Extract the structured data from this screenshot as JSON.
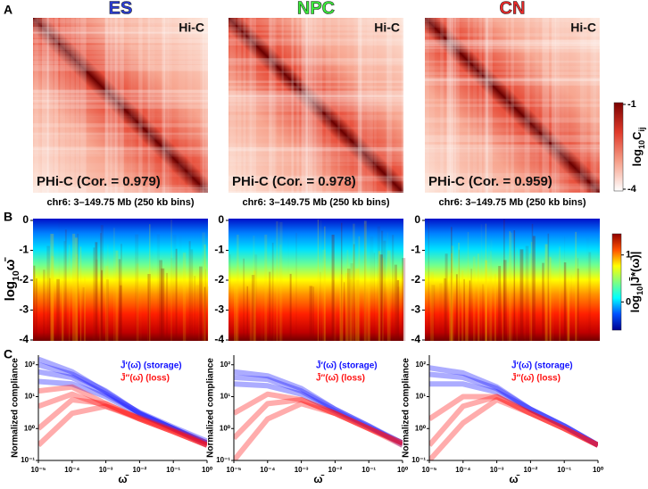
{
  "chart_data": [
    {
      "type": "heatmap",
      "panel": "A",
      "title": "ES",
      "title_color": "#2b3fe0",
      "corner_label": "Hi-C",
      "overlay_label": "PHi-C (Cor. = 0.979)",
      "xlabel": "chr6: 3–149.75 Mb (250 kb bins)"
    },
    {
      "type": "heatmap",
      "title": "NPC",
      "title_color": "#3cf03c",
      "corner_label": "Hi-C",
      "overlay_label": "PHi-C (Cor. = 0.978)",
      "xlabel": "chr6: 3–149.75 Mb (250 kb bins)"
    },
    {
      "type": "heatmap",
      "title": "CN",
      "title_color": "#f02a2a",
      "corner_label": "Hi-C",
      "overlay_label": "PHi-C (Cor. = 0.959)",
      "xlabel": "chr6: 3–149.75 Mb (250 kb bins)"
    },
    {
      "type": "colorbar",
      "lim": [
        -4,
        -1
      ],
      "ticks": [
        -1,
        -4
      ],
      "label": [
        "log",
        "10",
        "C",
        "ij"
      ],
      "colors": [
        "#ffffff",
        "#f6a08a",
        "#e03a2a",
        "#7a0000"
      ]
    },
    {
      "type": "spectrogram",
      "panel": "B",
      "ylabel": [
        "log",
        "10",
        "ω̄"
      ],
      "ylim": [
        -4,
        0
      ],
      "yticks": [
        0,
        -1,
        -2,
        -3,
        -4
      ]
    },
    {
      "type": "spectrogram",
      "ylim": [
        -4,
        0
      ],
      "yticks": [
        0,
        -1,
        -2,
        -3,
        -4
      ]
    },
    {
      "type": "spectrogram",
      "ylim": [
        -4,
        0
      ],
      "yticks": [
        0,
        -1,
        -2,
        -3,
        -4
      ]
    },
    {
      "type": "colorbar",
      "lim": [
        -0.6,
        1.45
      ],
      "ticks": [
        1,
        0
      ],
      "label": [
        "log",
        "10",
        "|J̄*(ω̄)|"
      ],
      "colors": [
        "#00008f",
        "#0050ff",
        "#00ffff",
        "#80ff80",
        "#ffff00",
        "#ff5000",
        "#8f0000"
      ]
    },
    {
      "type": "line",
      "panel": "C",
      "ylabel": "Normalized compliance",
      "xlabel": "ω̄",
      "log": true,
      "x": [
        1e-05,
        0.0001,
        0.001,
        0.01,
        0.1,
        1
      ],
      "xlim": [
        1e-05,
        1
      ],
      "ylim": [
        0.1,
        200
      ],
      "xticks": [
        {
          "value": 1e-05,
          "label": "10⁻⁵"
        },
        {
          "value": 0.0001,
          "label": "10⁻⁴"
        },
        {
          "value": 0.001,
          "label": "10⁻³"
        },
        {
          "value": 0.01,
          "label": "10⁻²"
        },
        {
          "value": 0.1,
          "label": "10⁻¹"
        },
        {
          "value": 1,
          "label": "10⁰"
        }
      ],
      "yticks": [
        {
          "value": 0.1,
          "label": "10⁻¹"
        },
        {
          "value": 1,
          "label": "10⁰"
        },
        {
          "value": 10,
          "label": "10¹"
        },
        {
          "value": 100,
          "label": "10²"
        }
      ],
      "series": [
        {
          "name": "J̄′(ω̄) (storage)",
          "color": "#1010ff",
          "curves": [
            [
              100,
              50,
              15,
              3,
              1,
              0.35
            ],
            [
              60,
              40,
              12,
              3.2,
              1.1,
              0.4
            ],
            [
              30,
              25,
              10,
              2.8,
              1,
              0.35
            ],
            [
              150,
              60,
              14,
              3,
              1,
              0.3
            ]
          ]
        },
        {
          "name": "J̄″(ω̄) (loss)",
          "color": "#ff1010",
          "curves": [
            [
              1,
              8,
              6,
              2,
              0.8,
              0.3
            ],
            [
              5,
              12,
              5,
              2.2,
              0.9,
              0.35
            ],
            [
              0.3,
              3,
              5,
              2,
              0.8,
              0.3
            ],
            [
              15,
              20,
              6,
              2,
              0.8,
              0.3
            ]
          ]
        }
      ]
    },
    {
      "type": "line",
      "ylabel": "Normalized compliance",
      "xlabel": "ω̄",
      "log": true,
      "x": [
        1e-05,
        0.0001,
        0.001,
        0.01,
        0.1,
        1
      ],
      "xlim": [
        1e-05,
        1
      ],
      "ylim": [
        0.1,
        200
      ],
      "xticks": [
        {
          "value": 1e-05,
          "label": "10⁻⁵"
        },
        {
          "value": 0.0001,
          "label": "10⁻⁴"
        },
        {
          "value": 0.001,
          "label": "10⁻³"
        },
        {
          "value": 0.01,
          "label": "10⁻²"
        },
        {
          "value": 0.1,
          "label": "10⁻¹"
        },
        {
          "value": 1,
          "label": "10⁰"
        }
      ],
      "yticks": [
        {
          "value": 0.1,
          "label": "10⁻¹"
        },
        {
          "value": 1,
          "label": "10⁰"
        },
        {
          "value": 10,
          "label": "10¹"
        },
        {
          "value": 100,
          "label": "10²"
        }
      ],
      "series": [
        {
          "name": "J̄′(ω̄) (storage)",
          "color": "#1010ff",
          "curves": [
            [
              40,
              35,
              15,
              4,
              1.2,
              0.35
            ],
            [
              25,
              22,
              12,
              3.5,
              1.1,
              0.35
            ],
            [
              60,
              45,
              18,
              4,
              1.2,
              0.3
            ]
          ]
        },
        {
          "name": "J̄″(ω̄) (loss)",
          "color": "#ff1010",
          "curves": [
            [
              0.5,
              6,
              8,
              3,
              1,
              0.35
            ],
            [
              3,
              12,
              8,
              3,
              1,
              0.35
            ],
            [
              0.1,
              2,
              6,
              3,
              1,
              0.3
            ]
          ]
        }
      ]
    },
    {
      "type": "line",
      "ylabel": "Normalized compliance",
      "xlabel": "ω̄",
      "log": true,
      "x": [
        1e-05,
        0.0001,
        0.001,
        0.01,
        0.1,
        1
      ],
      "xlim": [
        1e-05,
        1
      ],
      "ylim": [
        0.1,
        200
      ],
      "xticks": [
        {
          "value": 1e-05,
          "label": "10⁻⁵"
        },
        {
          "value": 0.0001,
          "label": "10⁻⁴"
        },
        {
          "value": 0.001,
          "label": "10⁻³"
        },
        {
          "value": 0.01,
          "label": "10⁻²"
        },
        {
          "value": 0.1,
          "label": "10⁻¹"
        },
        {
          "value": 1,
          "label": "10⁰"
        }
      ],
      "yticks": [
        {
          "value": 0.1,
          "label": "10⁻¹"
        },
        {
          "value": 1,
          "label": "10⁰"
        },
        {
          "value": 10,
          "label": "10¹"
        },
        {
          "value": 100,
          "label": "10²"
        }
      ],
      "series": [
        {
          "name": "J̄′(ω̄) (storage)",
          "color": "#1010ff",
          "curves": [
            [
              50,
              40,
              18,
              4,
              1.2,
              0.3
            ],
            [
              25,
              25,
              14,
              4,
              1.2,
              0.3
            ],
            [
              80,
              55,
              20,
              4,
              1.2,
              0.3
            ]
          ]
        },
        {
          "name": "J̄″(ω̄) (loss)",
          "color": "#ff1010",
          "curves": [
            [
              0.3,
              5,
              10,
              3,
              1,
              0.3
            ],
            [
              2,
              10,
              10,
              3,
              1,
              0.3
            ],
            [
              0.1,
              1.5,
              8,
              3,
              1,
              0.3
            ]
          ]
        }
      ]
    }
  ]
}
